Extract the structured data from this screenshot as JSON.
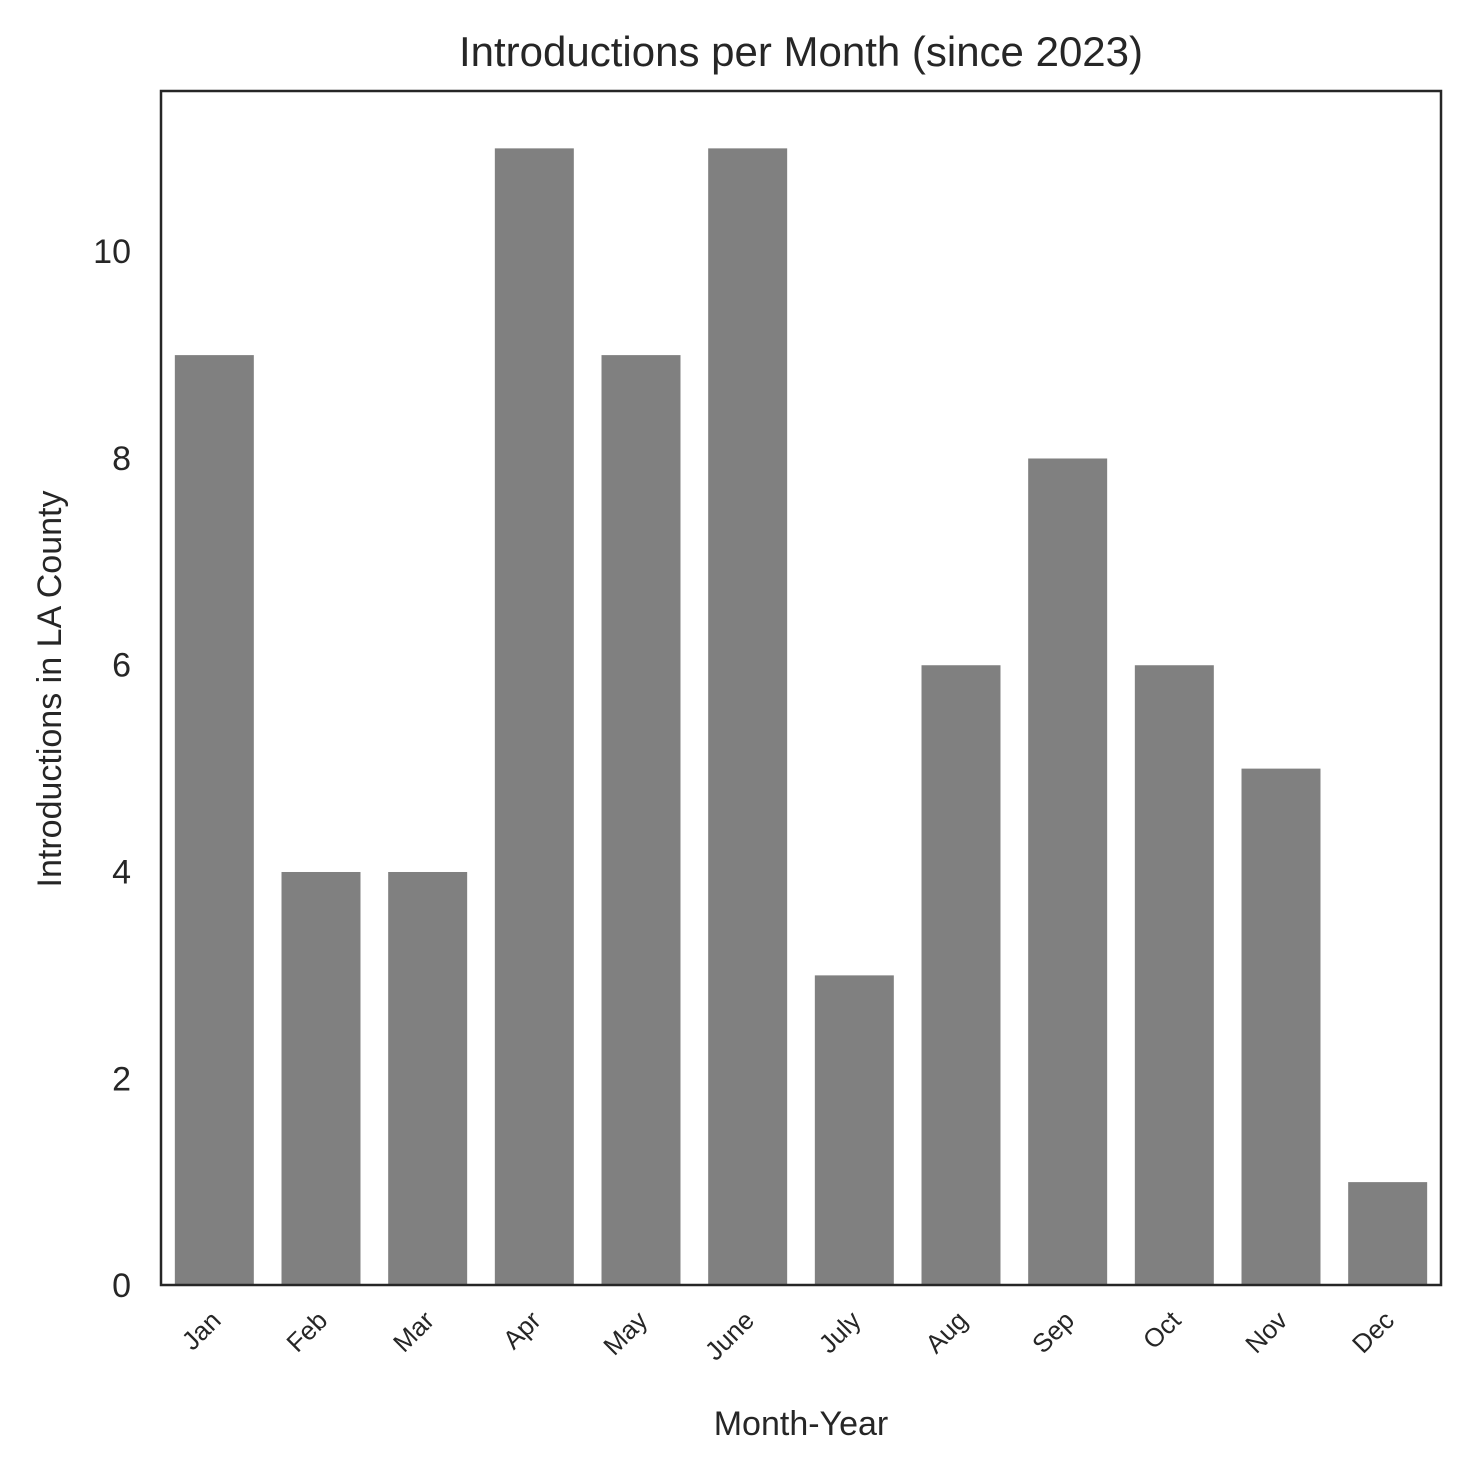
{
  "chart_data": {
    "type": "bar",
    "title": "Introductions per Month (since 2023)",
    "xlabel": "Month-Year",
    "ylabel": "Introductions in LA County",
    "categories": [
      "Jan",
      "Feb",
      "Mar",
      "Apr",
      "May",
      "June",
      "July",
      "Aug",
      "Sep",
      "Oct",
      "Nov",
      "Dec"
    ],
    "values": [
      9,
      4,
      4,
      11,
      9,
      11,
      3,
      6,
      8,
      6,
      5,
      1
    ],
    "ylim": [
      0,
      11.55
    ],
    "yticks": [
      0,
      2,
      4,
      6,
      8,
      10
    ],
    "bar_color": "#808080",
    "grid": false,
    "legend": "none"
  }
}
